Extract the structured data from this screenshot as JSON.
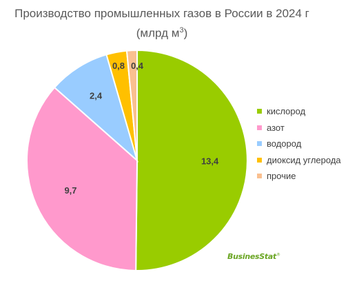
{
  "chart_data": {
    "type": "pie",
    "title": "Производство промышленных газов в России в 2024 г",
    "title_unit": "(млрд м",
    "title_unit_sup": "3",
    "title_unit_end": ")",
    "series": [
      {
        "name": "кислород",
        "value": 13.4,
        "label": "13,4",
        "color": "#99cc00"
      },
      {
        "name": "азот",
        "value": 9.7,
        "label": "9,7",
        "color": "#ff99cc"
      },
      {
        "name": "водород",
        "value": 2.4,
        "label": "2,4",
        "color": "#99ccff"
      },
      {
        "name": "диоксид углерода",
        "value": 0.8,
        "label": "0,8",
        "color": "#ffc000"
      },
      {
        "name": "прочие",
        "value": 0.4,
        "label": "0,4",
        "color": "#fac090"
      }
    ],
    "legend_position": "right"
  },
  "logo": {
    "text": "BusinesStat",
    "mark": "®"
  }
}
